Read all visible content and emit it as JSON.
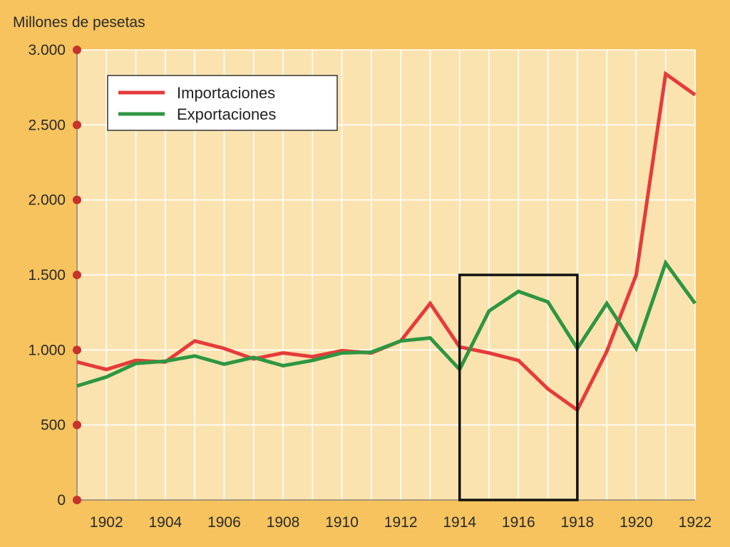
{
  "chart_data": {
    "type": "line",
    "ylabel": "Millones de pesetas",
    "x": [
      1901,
      1902,
      1903,
      1904,
      1905,
      1906,
      1907,
      1908,
      1909,
      1910,
      1911,
      1912,
      1913,
      1914,
      1915,
      1916,
      1917,
      1918,
      1919,
      1920,
      1921,
      1922
    ],
    "xticks": [
      1902,
      1904,
      1906,
      1908,
      1910,
      1912,
      1914,
      1916,
      1918,
      1920,
      1922
    ],
    "xlim": [
      1901,
      1922
    ],
    "ylim": [
      0,
      3000
    ],
    "yticks": [
      0,
      500,
      1000,
      1500,
      2000,
      2500,
      3000
    ],
    "ytick_labels": [
      "0",
      "500",
      "1.000",
      "1.500",
      "2.000",
      "2.500",
      "3.000"
    ],
    "grid": true,
    "legend_position": "top-left",
    "series": [
      {
        "name": "Importaciones",
        "color": "#e53b3b",
        "values": [
          920,
          870,
          930,
          920,
          1060,
          1010,
          940,
          980,
          955,
          995,
          980,
          1060,
          1310,
          1020,
          980,
          930,
          740,
          600,
          990,
          1500,
          2840,
          2700
        ]
      },
      {
        "name": "Exportaciones",
        "color": "#2e9642",
        "values": [
          760,
          820,
          910,
          925,
          960,
          905,
          950,
          895,
          930,
          980,
          985,
          1060,
          1080,
          870,
          1260,
          1390,
          1320,
          1010,
          1310,
          1010,
          1580,
          1310
        ]
      }
    ],
    "annotations": [
      {
        "type": "rectangle",
        "x_range": [
          1914,
          1918
        ],
        "y_range": [
          0,
          1500
        ]
      }
    ]
  }
}
